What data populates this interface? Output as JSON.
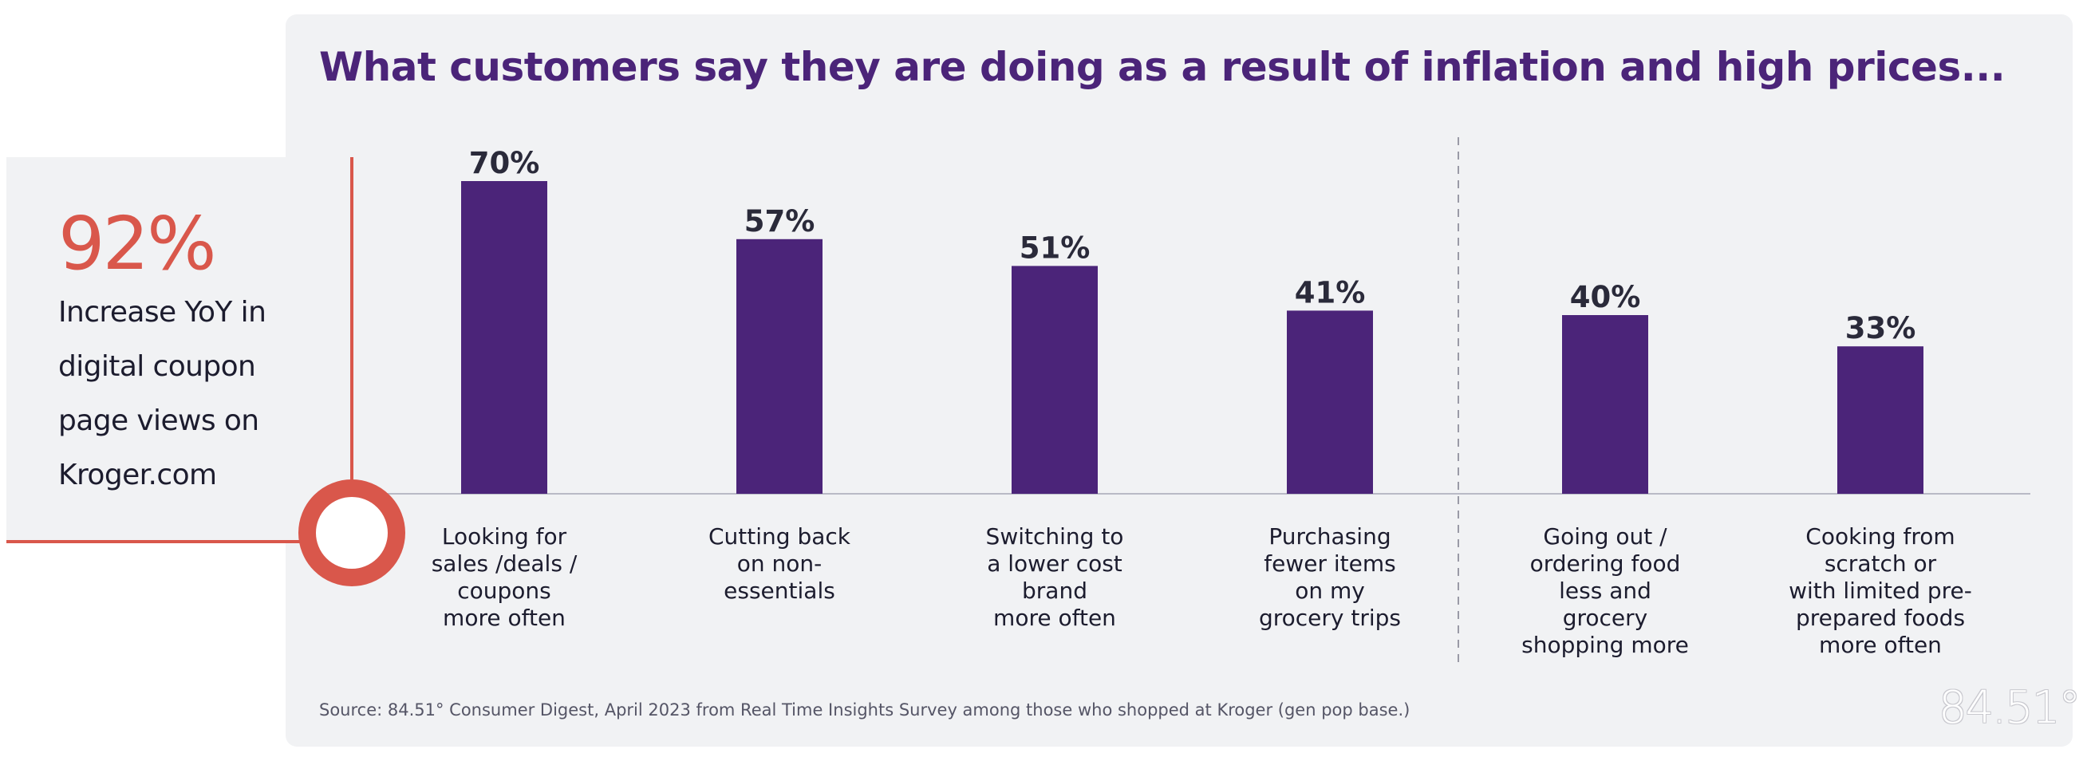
{
  "title": "What customers say they are doing as a result of inflation and high prices...",
  "stat": {
    "value": "92%",
    "description": "Increase YoY in digital coupon page views on Kroger.com"
  },
  "source": "Source: 84.51° Consumer Digest, April 2023 from Real Time Insights Survey among those who shopped at Kroger (gen pop base.)",
  "logo": "84.51°",
  "colors": {
    "bar": "#4b2479",
    "title": "#4b2479",
    "accent": "#d9574b",
    "divider": "#9a9aa6"
  },
  "chart_data": {
    "type": "bar",
    "title": "What customers say they are doing as a result of inflation and high prices...",
    "xlabel": "",
    "ylabel": "",
    "ylim": [
      0,
      80
    ],
    "grid": false,
    "categories": [
      "Looking for sales /deals / coupons more often",
      "Cutting back on non-essentials",
      "Switching to a lower cost brand more often",
      "Purchasing fewer items on my grocery trips",
      "Going out / ordering food less and grocery shopping more",
      "Cooking from scratch or with limited pre-prepared foods more often"
    ],
    "category_lines": [
      "Looking for\nsales /deals /\ncoupons\nmore often",
      "Cutting back\non non-\nessentials",
      "Switching to\na lower cost\nbrand\nmore often",
      "Purchasing\nfewer items\non my\ngrocery trips",
      "Going out /\nordering food\nless and\ngrocery\nshopping more",
      "Cooking from\nscratch or\nwith limited pre-\nprepared foods\nmore often"
    ],
    "values": [
      70,
      57,
      51,
      41,
      40,
      33
    ],
    "value_labels": [
      "70%",
      "57%",
      "51%",
      "41%",
      "40%",
      "33%"
    ]
  }
}
